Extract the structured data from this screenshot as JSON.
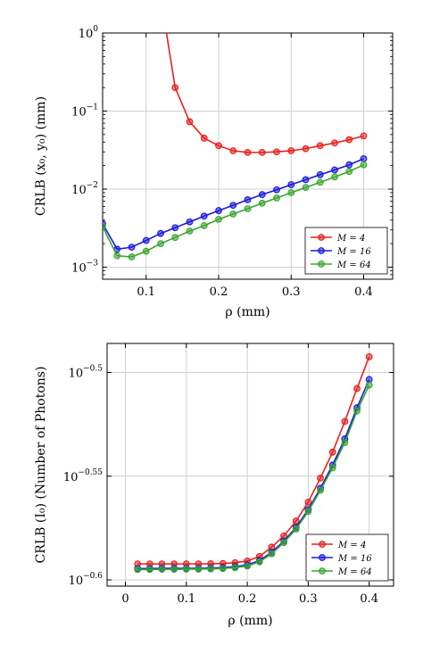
{
  "chart_data": [
    {
      "type": "line",
      "xlabel": "ρ (mm)",
      "ylabel": "CRLB (x₀, y₀) (mm)",
      "x_scale": "linear",
      "y_scale": "log",
      "xlim": [
        0.04,
        0.44
      ],
      "ylim": [
        0.0007,
        1.0
      ],
      "x_ticks": [
        {
          "value": 0.1,
          "label": "0.1"
        },
        {
          "value": 0.2,
          "label": "0.2"
        },
        {
          "value": 0.3,
          "label": "0.3"
        },
        {
          "value": 0.4,
          "label": "0.4"
        }
      ],
      "y_ticks": [
        {
          "value": 0.001,
          "base": "10",
          "exp": "−3"
        },
        {
          "value": 0.01,
          "base": "10",
          "exp": "−2"
        },
        {
          "value": 0.1,
          "base": "10",
          "exp": "−1"
        },
        {
          "value": 1.0,
          "base": "10",
          "exp": "0"
        }
      ],
      "grid": true,
      "legend_position": "bottom-right",
      "series": [
        {
          "name": "M = 4",
          "color": "#e8211d",
          "x": [
            0.06,
            0.08,
            0.1,
            0.12,
            0.14,
            0.16,
            0.18,
            0.2,
            0.22,
            0.24,
            0.26,
            0.28,
            0.3,
            0.32,
            0.34,
            0.36,
            0.38,
            0.4
          ],
          "y": [
            null,
            null,
            null,
            null,
            0.2,
            0.073,
            0.045,
            0.036,
            0.031,
            0.0295,
            0.0295,
            0.03,
            0.031,
            0.033,
            0.036,
            0.039,
            0.043,
            0.048
          ],
          "curve_head": [
            [
              0.128,
              1.0
            ],
            [
              0.134,
              0.45
            ],
            [
              0.14,
              0.2
            ]
          ]
        },
        {
          "name": "M = 16",
          "color": "#1a1adf",
          "x": [
            0.04,
            0.06,
            0.08,
            0.1,
            0.12,
            0.14,
            0.16,
            0.18,
            0.2,
            0.22,
            0.24,
            0.26,
            0.28,
            0.3,
            0.32,
            0.34,
            0.36,
            0.38,
            0.4
          ],
          "y": [
            0.0036,
            0.0017,
            0.0018,
            0.0022,
            0.0027,
            0.0032,
            0.0038,
            0.0045,
            0.0053,
            0.0062,
            0.0073,
            0.0085,
            0.0098,
            0.0114,
            0.0132,
            0.0153,
            0.0176,
            0.0205,
            0.0245
          ]
        },
        {
          "name": "M = 64",
          "color": "#3aa630",
          "x": [
            0.04,
            0.06,
            0.08,
            0.1,
            0.12,
            0.14,
            0.16,
            0.18,
            0.2,
            0.22,
            0.24,
            0.26,
            0.28,
            0.3,
            0.32,
            0.34,
            0.36,
            0.38,
            0.4
          ],
          "y": [
            0.0033,
            0.0014,
            0.00135,
            0.0016,
            0.002,
            0.0024,
            0.0029,
            0.0034,
            0.0041,
            0.0048,
            0.0056,
            0.0066,
            0.0077,
            0.009,
            0.0105,
            0.0122,
            0.0143,
            0.0168,
            0.0205
          ]
        }
      ]
    },
    {
      "type": "line",
      "xlabel": "ρ (mm)",
      "ylabel": "CRLB (I₀) (Number of Photons)",
      "x_scale": "linear",
      "y_scale": "log",
      "xlim": [
        -0.03,
        0.44
      ],
      "ylim_log10": [
        -0.603,
        -0.486
      ],
      "x_ticks": [
        {
          "value": 0,
          "label": "0"
        },
        {
          "value": 0.1,
          "label": "0.1"
        },
        {
          "value": 0.2,
          "label": "0.2"
        },
        {
          "value": 0.3,
          "label": "0.3"
        },
        {
          "value": 0.4,
          "label": "0.4"
        }
      ],
      "y_ticks": [
        {
          "log10": -0.6,
          "base": "10",
          "exp": "−0.6"
        },
        {
          "log10": -0.55,
          "base": "10",
          "exp": "−0.55"
        },
        {
          "log10": -0.5,
          "base": "10",
          "exp": "−0.5"
        }
      ],
      "grid": true,
      "legend_position": "bottom-right",
      "series": [
        {
          "name": "M = 4",
          "color": "#e8211d",
          "x": [
            0.02,
            0.04,
            0.06,
            0.08,
            0.1,
            0.12,
            0.14,
            0.16,
            0.18,
            0.2,
            0.22,
            0.24,
            0.26,
            0.28,
            0.3,
            0.32,
            0.34,
            0.36,
            0.38,
            0.4
          ],
          "log10_y": [
            -0.5923,
            -0.5923,
            -0.5923,
            -0.5923,
            -0.5923,
            -0.5923,
            -0.5922,
            -0.5921,
            -0.5917,
            -0.5909,
            -0.5887,
            -0.5842,
            -0.5788,
            -0.5716,
            -0.5625,
            -0.5509,
            -0.5384,
            -0.5236,
            -0.5077,
            -0.4924
          ]
        },
        {
          "name": "M = 16",
          "color": "#1a1adf",
          "x": [
            0.02,
            0.04,
            0.06,
            0.08,
            0.1,
            0.12,
            0.14,
            0.16,
            0.18,
            0.2,
            0.22,
            0.24,
            0.26,
            0.28,
            0.3,
            0.32,
            0.34,
            0.36,
            0.38,
            0.4
          ],
          "log10_y": [
            -0.5945,
            -0.5945,
            -0.5944,
            -0.5944,
            -0.5944,
            -0.5944,
            -0.5943,
            -0.5941,
            -0.5936,
            -0.5928,
            -0.5907,
            -0.5867,
            -0.5813,
            -0.5747,
            -0.5661,
            -0.5558,
            -0.5446,
            -0.532,
            -0.517,
            -0.5034
          ]
        },
        {
          "name": "M = 64",
          "color": "#3aa630",
          "x": [
            0.02,
            0.04,
            0.06,
            0.08,
            0.1,
            0.12,
            0.14,
            0.16,
            0.18,
            0.2,
            0.22,
            0.24,
            0.26,
            0.28,
            0.3,
            0.32,
            0.34,
            0.36,
            0.38,
            0.4
          ],
          "log10_y": [
            -0.595,
            -0.595,
            -0.5949,
            -0.5949,
            -0.5948,
            -0.5948,
            -0.5947,
            -0.5945,
            -0.5941,
            -0.5933,
            -0.5913,
            -0.5874,
            -0.582,
            -0.5755,
            -0.567,
            -0.5568,
            -0.546,
            -0.5338,
            -0.5186,
            -0.5061
          ]
        }
      ]
    }
  ]
}
